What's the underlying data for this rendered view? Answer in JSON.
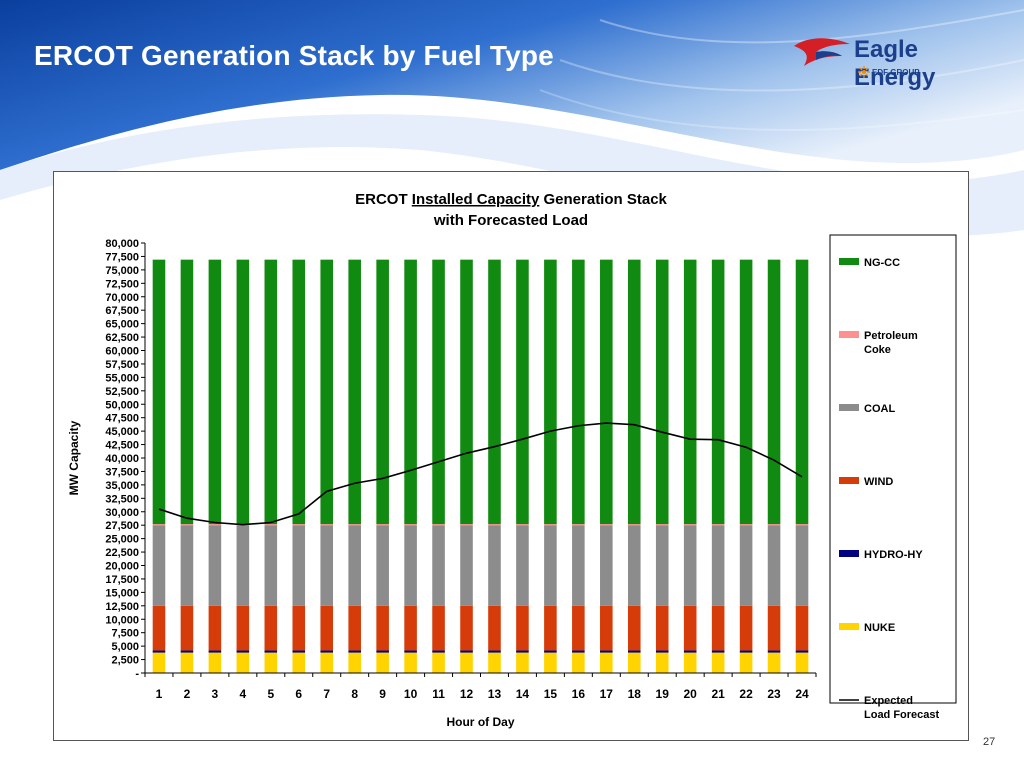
{
  "slide": {
    "title": "ERCOT Generation Stack by Fuel Type",
    "page_number": "27",
    "logo": {
      "name": "Eagle Energy",
      "subtitle": "EDF GROUP"
    }
  },
  "chart_data": {
    "type": "bar",
    "stacked": true,
    "title_line1_prefix": "ERCOT ",
    "title_line1_underlined": "Installed Capacity",
    "title_line1_suffix": " Generation Stack",
    "title_line2": "with Forecasted Load",
    "xlabel": "Hour of Day",
    "ylabel": "MW Capacity",
    "ylim": [
      0,
      80000
    ],
    "ytick_step": 2500,
    "y_zero_label": "-",
    "grid": false,
    "legend_position": "right",
    "categories": [
      "1",
      "2",
      "3",
      "4",
      "5",
      "6",
      "7",
      "8",
      "9",
      "10",
      "11",
      "12",
      "13",
      "14",
      "15",
      "16",
      "17",
      "18",
      "19",
      "20",
      "21",
      "22",
      "23",
      "24"
    ],
    "series": [
      {
        "name": "NUKE",
        "color": "#ffd400",
        "values": [
          3800,
          3800,
          3800,
          3800,
          3800,
          3800,
          3800,
          3800,
          3800,
          3800,
          3800,
          3800,
          3800,
          3800,
          3800,
          3800,
          3800,
          3800,
          3800,
          3800,
          3800,
          3800,
          3800,
          3800
        ]
      },
      {
        "name": "HYDRO-HY",
        "color": "#000080",
        "values": [
          400,
          400,
          400,
          400,
          400,
          400,
          400,
          400,
          400,
          400,
          400,
          400,
          400,
          400,
          400,
          400,
          400,
          400,
          400,
          400,
          400,
          400,
          400,
          400
        ]
      },
      {
        "name": "WIND",
        "color": "#d63c0a",
        "values": [
          8300,
          8300,
          8300,
          8300,
          8300,
          8300,
          8300,
          8300,
          8300,
          8300,
          8300,
          8300,
          8300,
          8300,
          8300,
          8300,
          8300,
          8300,
          8300,
          8300,
          8300,
          8300,
          8300,
          8300
        ]
      },
      {
        "name": "COAL",
        "color": "#8c8c8c",
        "values": [
          15000,
          15000,
          15000,
          15000,
          15000,
          15000,
          15000,
          15000,
          15000,
          15000,
          15000,
          15000,
          15000,
          15000,
          15000,
          15000,
          15000,
          15000,
          15000,
          15000,
          15000,
          15000,
          15000,
          15000
        ]
      },
      {
        "name": "Petroleum Coke",
        "color": "#ff9090",
        "values": [
          200,
          200,
          200,
          200,
          200,
          200,
          200,
          200,
          200,
          200,
          200,
          200,
          200,
          200,
          200,
          200,
          200,
          200,
          200,
          200,
          200,
          200,
          200,
          200
        ]
      },
      {
        "name": "NG-CC",
        "color": "#118a11",
        "values": [
          49200,
          49200,
          49200,
          49200,
          49200,
          49200,
          49200,
          49200,
          49200,
          49200,
          49200,
          49200,
          49200,
          49200,
          49200,
          49200,
          49200,
          49200,
          49200,
          49200,
          49200,
          49200,
          49200,
          49200
        ]
      }
    ],
    "line_series": {
      "name": "Expected Load Forecast",
      "color": "#000000",
      "values": [
        30500,
        28800,
        28000,
        27600,
        28000,
        29600,
        33800,
        35300,
        36200,
        37700,
        39300,
        40900,
        42100,
        43500,
        45000,
        46000,
        46500,
        46200,
        44800,
        43500,
        43400,
        42000,
        39600,
        36500
      ]
    },
    "legend_order": [
      "NG-CC",
      "Petroleum Coke",
      "COAL",
      "WIND",
      "HYDRO-HY",
      "NUKE",
      "Expected Load Forecast"
    ]
  }
}
